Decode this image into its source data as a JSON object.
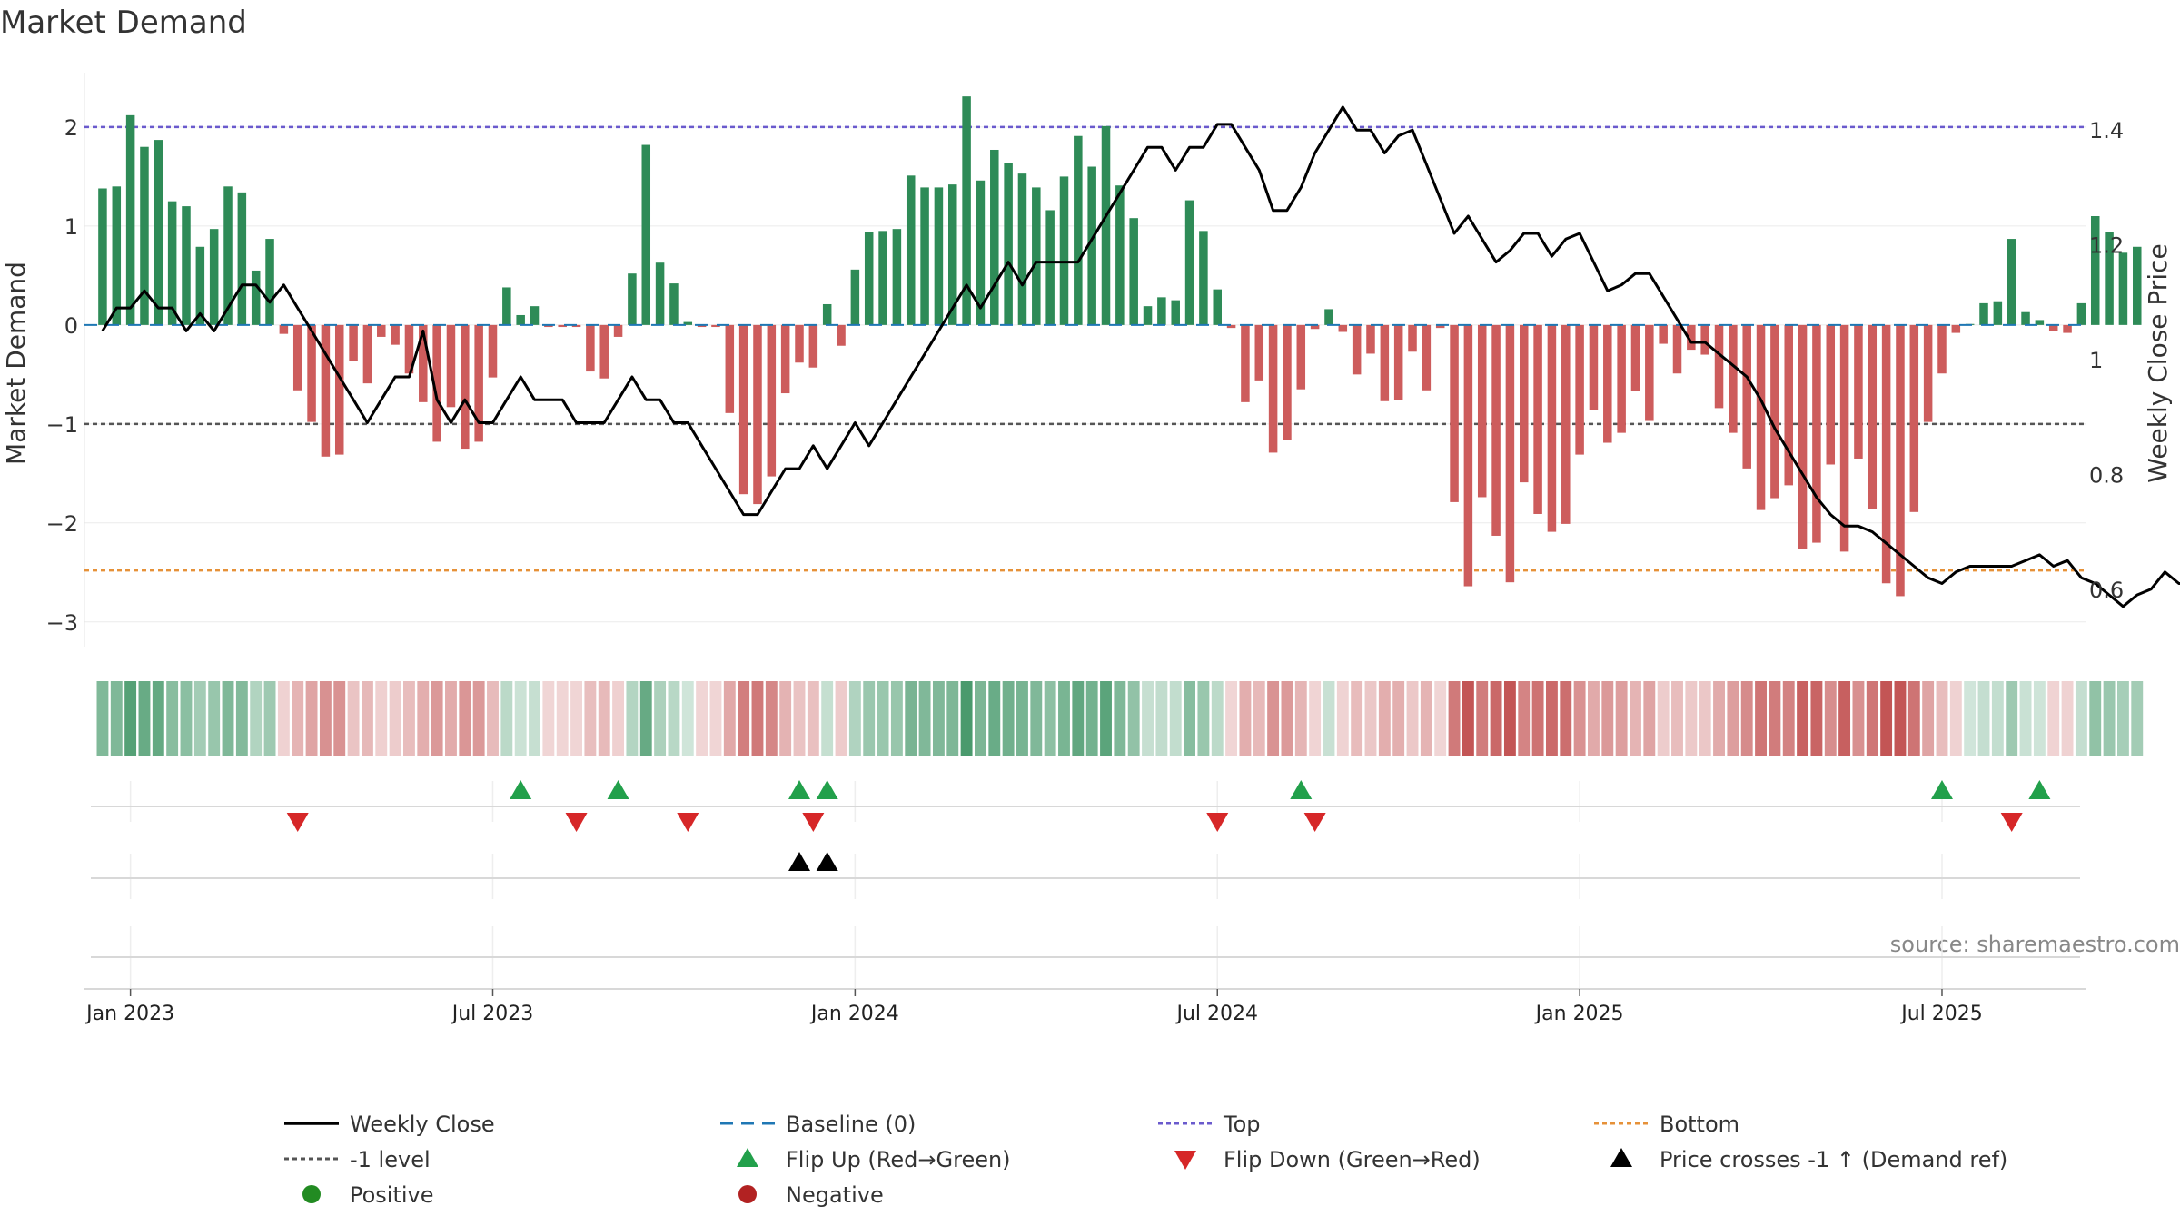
{
  "chart_data": {
    "type": "bar",
    "title": "Market Demand",
    "ylabel": "Market Demand",
    "ylabel_right": "Weekly Close Price",
    "ylim": [
      -3.25,
      2.55
    ],
    "ylim_right": [
      0.5,
      1.5
    ],
    "yticks": [
      {
        "v": 2,
        "label": "2"
      },
      {
        "v": 1,
        "label": "1"
      },
      {
        "v": 0,
        "label": "0"
      },
      {
        "v": -1,
        "label": "−1"
      },
      {
        "v": -2,
        "label": "−2"
      },
      {
        "v": -3,
        "label": "−3"
      }
    ],
    "yticks_right": [
      {
        "v": 1.4,
        "label": "1.4"
      },
      {
        "v": 1.2,
        "label": "1.2"
      },
      {
        "v": 1,
        "label": "1"
      },
      {
        "v": 0.8,
        "label": "0.8"
      },
      {
        "v": 0.6,
        "label": "0.6"
      }
    ],
    "x_index_range": [
      -1.3,
      142.3
    ],
    "xticks": [
      {
        "i": 2,
        "label": "Jan 2023"
      },
      {
        "i": 28,
        "label": "Jul 2023"
      },
      {
        "i": 54,
        "label": "Jan 2024"
      },
      {
        "i": 80,
        "label": "Jul 2024"
      },
      {
        "i": 106,
        "label": "Jan 2025"
      },
      {
        "i": 132,
        "label": "Jul 2025"
      }
    ],
    "reference_lines": {
      "top": 2.0,
      "bottom": -2.48,
      "minus_one": -1,
      "baseline": 0
    },
    "demand": [
      1.38,
      1.4,
      2.12,
      1.8,
      1.87,
      1.25,
      1.2,
      0.79,
      0.97,
      1.4,
      1.34,
      0.55,
      0.87,
      -0.09,
      -0.66,
      -0.98,
      -1.33,
      -1.31,
      -0.36,
      -0.59,
      -0.12,
      -0.2,
      -0.49,
      -0.78,
      -1.18,
      -0.83,
      -1.25,
      -1.18,
      -0.53,
      0.38,
      0.1,
      0.19,
      -0.02,
      -0.02,
      -0.02,
      -0.47,
      -0.54,
      -0.12,
      0.52,
      1.82,
      0.63,
      0.42,
      0.03,
      -0.02,
      -0.02,
      -0.89,
      -1.71,
      -1.81,
      -1.53,
      -0.69,
      -0.38,
      -0.43,
      0.21,
      -0.21,
      0.56,
      0.94,
      0.95,
      0.97,
      1.51,
      1.39,
      1.39,
      1.42,
      2.31,
      1.46,
      1.77,
      1.64,
      1.53,
      1.39,
      1.16,
      1.5,
      1.91,
      1.6,
      2.01,
      1.41,
      1.08,
      0.19,
      0.28,
      0.25,
      1.26,
      0.95,
      0.36,
      -0.03,
      -0.78,
      -0.56,
      -1.29,
      -1.16,
      -0.65,
      -0.04,
      0.16,
      -0.07,
      -0.5,
      -0.29,
      -0.77,
      -0.76,
      -0.27,
      -0.66,
      -0.03,
      -1.79,
      -2.64,
      -1.74,
      -2.13,
      -2.6,
      -1.59,
      -1.91,
      -2.09,
      -2.01,
      -1.31,
      -0.86,
      -1.19,
      -1.09,
      -0.67,
      -0.97,
      -0.19,
      -0.49,
      -0.25,
      -0.3,
      -0.84,
      -1.09,
      -1.45,
      -1.87,
      -1.75,
      -1.62,
      -2.26,
      -2.2,
      -1.41,
      -2.29,
      -1.35,
      -1.86,
      -2.61,
      -2.74,
      -1.89,
      -0.98,
      -0.49,
      -0.08,
      0.01,
      0.22,
      0.24,
      0.87,
      0.13,
      0.05,
      -0.06,
      -0.08,
      0.22,
      1.1,
      0.94,
      0.73,
      0.79
    ],
    "weekly_close": [
      1.05,
      1.09,
      1.09,
      1.12,
      1.09,
      1.09,
      1.05,
      1.08,
      1.05,
      1.09,
      1.13,
      1.13,
      1.1,
      1.13,
      1.09,
      1.05,
      1.01,
      0.97,
      0.93,
      0.89,
      0.93,
      0.97,
      0.97,
      1.05,
      0.93,
      0.89,
      0.93,
      0.89,
      0.89,
      0.93,
      0.97,
      0.93,
      0.93,
      0.93,
      0.89,
      0.89,
      0.89,
      0.93,
      0.97,
      0.93,
      0.93,
      0.89,
      0.89,
      0.85,
      0.81,
      0.77,
      0.73,
      0.73,
      0.77,
      0.81,
      0.81,
      0.85,
      0.81,
      0.85,
      0.89,
      0.85,
      0.89,
      0.93,
      0.97,
      1.01,
      1.05,
      1.09,
      1.13,
      1.09,
      1.13,
      1.17,
      1.13,
      1.17,
      1.17,
      1.17,
      1.17,
      1.21,
      1.25,
      1.29,
      1.33,
      1.37,
      1.37,
      1.33,
      1.37,
      1.37,
      1.41,
      1.41,
      1.37,
      1.33,
      1.26,
      1.26,
      1.3,
      1.36,
      1.4,
      1.44,
      1.4,
      1.4,
      1.36,
      1.39,
      1.4,
      1.34,
      1.28,
      1.22,
      1.25,
      1.21,
      1.17,
      1.19,
      1.22,
      1.22,
      1.18,
      1.21,
      1.22,
      1.17,
      1.12,
      1.13,
      1.15,
      1.15,
      1.11,
      1.07,
      1.03,
      1.03,
      1.01,
      0.99,
      0.97,
      0.93,
      0.88,
      0.84,
      0.8,
      0.76,
      0.73,
      0.71,
      0.71,
      0.7,
      0.68,
      0.66,
      0.64,
      0.62,
      0.61,
      0.63,
      0.64,
      0.64,
      0.64,
      0.64,
      0.65,
      0.66,
      0.64,
      0.65,
      0.62,
      0.61,
      0.59,
      0.57,
      0.59,
      0.6,
      0.63,
      0.61,
      0.61
    ],
    "flip_up": [
      30,
      37,
      50,
      52,
      86,
      132,
      139
    ],
    "flip_down": [
      14,
      34,
      42,
      51,
      80,
      87,
      137
    ],
    "price_cross": [
      50,
      52
    ],
    "source": "source: sharemaestro.com",
    "colors": {
      "positive": "#2e8b57",
      "negative": "#cd5c5c",
      "price": "#000000",
      "top": "#6a5acd",
      "bottom": "#e69138",
      "minus_one": "#555555",
      "baseline": "#1f77b4",
      "flip_up": "#22a04b",
      "flip_down": "#d62728",
      "cross": "#000000",
      "legend_positive": "#228b22",
      "legend_negative": "#b22222",
      "grid": "#ebebeb"
    },
    "legend": [
      {
        "kind": "line",
        "label": "Weekly Close",
        "color": "#000000"
      },
      {
        "kind": "dash",
        "label": "Baseline (0)",
        "color": "#1f77b4"
      },
      {
        "kind": "dot",
        "label": "Top",
        "color": "#6a5acd"
      },
      {
        "kind": "dot",
        "label": "Bottom",
        "color": "#e69138"
      },
      {
        "kind": "dot",
        "label": "-1 level",
        "color": "#555555"
      },
      {
        "kind": "tri-up",
        "label": "Flip Up (Red→Green)",
        "color": "#22a04b"
      },
      {
        "kind": "tri-down",
        "label": "Flip Down (Green→Red)",
        "color": "#d62728"
      },
      {
        "kind": "tri-up",
        "label": "Price crosses -1 ↑ (Demand ref)",
        "color": "#000000"
      },
      {
        "kind": "circle",
        "label": "Positive",
        "color": "#228b22"
      },
      {
        "kind": "circle",
        "label": "Negative",
        "color": "#b22222"
      }
    ]
  }
}
